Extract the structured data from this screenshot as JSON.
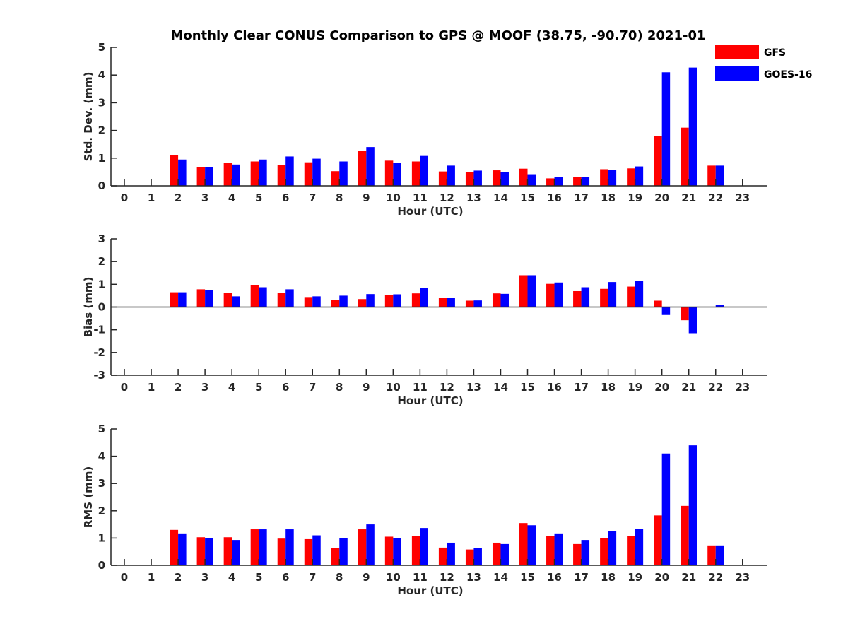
{
  "title": "Monthly Clear CONUS Comparison to GPS @ MOOF (38.75, -90.70) 2021-01",
  "legend": {
    "placement": "top-right",
    "entries": [
      {
        "name": "GFS",
        "color": "#ff0000"
      },
      {
        "name": "GOES-16",
        "color": "#0000ff"
      }
    ]
  },
  "chart_data": [
    {
      "type": "bar",
      "ylabel": "Std. Dev. (mm)",
      "xlabel": "Hour (UTC)",
      "ylim": [
        0,
        5
      ],
      "yticks": [
        "0",
        "1",
        "2",
        "3",
        "4",
        "5"
      ],
      "categories": [
        "0",
        "1",
        "2",
        "3",
        "4",
        "5",
        "6",
        "7",
        "8",
        "9",
        "10",
        "11",
        "12",
        "13",
        "14",
        "15",
        "16",
        "17",
        "18",
        "19",
        "20",
        "21",
        "22",
        "23"
      ],
      "grid": false,
      "series": [
        {
          "name": "GFS",
          "color": "#ff0000",
          "values": [
            null,
            null,
            1.12,
            0.68,
            0.83,
            0.88,
            0.75,
            0.85,
            0.53,
            1.27,
            0.91,
            0.88,
            0.52,
            0.5,
            0.56,
            0.62,
            0.27,
            0.32,
            0.6,
            0.63,
            1.8,
            2.1,
            0.73,
            null
          ]
        },
        {
          "name": "GOES-16",
          "color": "#0000ff",
          "values": [
            null,
            null,
            0.95,
            0.68,
            0.77,
            0.95,
            1.06,
            0.98,
            0.88,
            1.4,
            0.83,
            1.08,
            0.73,
            0.55,
            0.5,
            0.42,
            0.33,
            0.33,
            0.57,
            0.7,
            4.1,
            4.27,
            0.73,
            null
          ]
        }
      ]
    },
    {
      "type": "bar",
      "ylabel": "Bias (mm)",
      "xlabel": "Hour (UTC)",
      "ylim": [
        -3,
        3
      ],
      "yticks": [
        "-3",
        "-2",
        "-1",
        "0",
        "1",
        "2",
        "3"
      ],
      "categories": [
        "0",
        "1",
        "2",
        "3",
        "4",
        "5",
        "6",
        "7",
        "8",
        "9",
        "10",
        "11",
        "12",
        "13",
        "14",
        "15",
        "16",
        "17",
        "18",
        "19",
        "20",
        "21",
        "22",
        "23"
      ],
      "zero_line": true,
      "grid": false,
      "series": [
        {
          "name": "GFS",
          "color": "#ff0000",
          "values": [
            null,
            null,
            0.65,
            0.78,
            0.62,
            0.97,
            0.62,
            0.44,
            0.32,
            0.35,
            0.53,
            0.6,
            0.4,
            0.28,
            0.6,
            1.4,
            1.02,
            0.7,
            0.8,
            0.9,
            0.28,
            -0.58,
            0.0,
            null
          ]
        },
        {
          "name": "GOES-16",
          "color": "#0000ff",
          "values": [
            null,
            null,
            0.65,
            0.75,
            0.47,
            0.87,
            0.78,
            0.47,
            0.5,
            0.57,
            0.56,
            0.83,
            0.4,
            0.29,
            0.58,
            1.4,
            1.08,
            0.87,
            1.1,
            1.15,
            -0.35,
            -1.15,
            0.1,
            null
          ]
        }
      ]
    },
    {
      "type": "bar",
      "ylabel": "RMS (mm)",
      "xlabel": "Hour (UTC)",
      "ylim": [
        0,
        5
      ],
      "yticks": [
        "0",
        "1",
        "2",
        "3",
        "4",
        "5"
      ],
      "categories": [
        "0",
        "1",
        "2",
        "3",
        "4",
        "5",
        "6",
        "7",
        "8",
        "9",
        "10",
        "11",
        "12",
        "13",
        "14",
        "15",
        "16",
        "17",
        "18",
        "19",
        "20",
        "21",
        "22",
        "23"
      ],
      "grid": false,
      "series": [
        {
          "name": "GFS",
          "color": "#ff0000",
          "values": [
            null,
            null,
            1.3,
            1.03,
            1.03,
            1.32,
            0.98,
            0.96,
            0.63,
            1.32,
            1.05,
            1.07,
            0.65,
            0.58,
            0.83,
            1.55,
            1.07,
            0.78,
            1.0,
            1.08,
            1.83,
            2.18,
            0.73,
            null
          ]
        },
        {
          "name": "GOES-16",
          "color": "#0000ff",
          "values": [
            null,
            null,
            1.17,
            1.0,
            0.93,
            1.32,
            1.32,
            1.1,
            1.0,
            1.5,
            1.0,
            1.37,
            0.83,
            0.63,
            0.78,
            1.47,
            1.17,
            0.93,
            1.25,
            1.33,
            4.1,
            4.4,
            0.73,
            null
          ]
        }
      ]
    }
  ]
}
